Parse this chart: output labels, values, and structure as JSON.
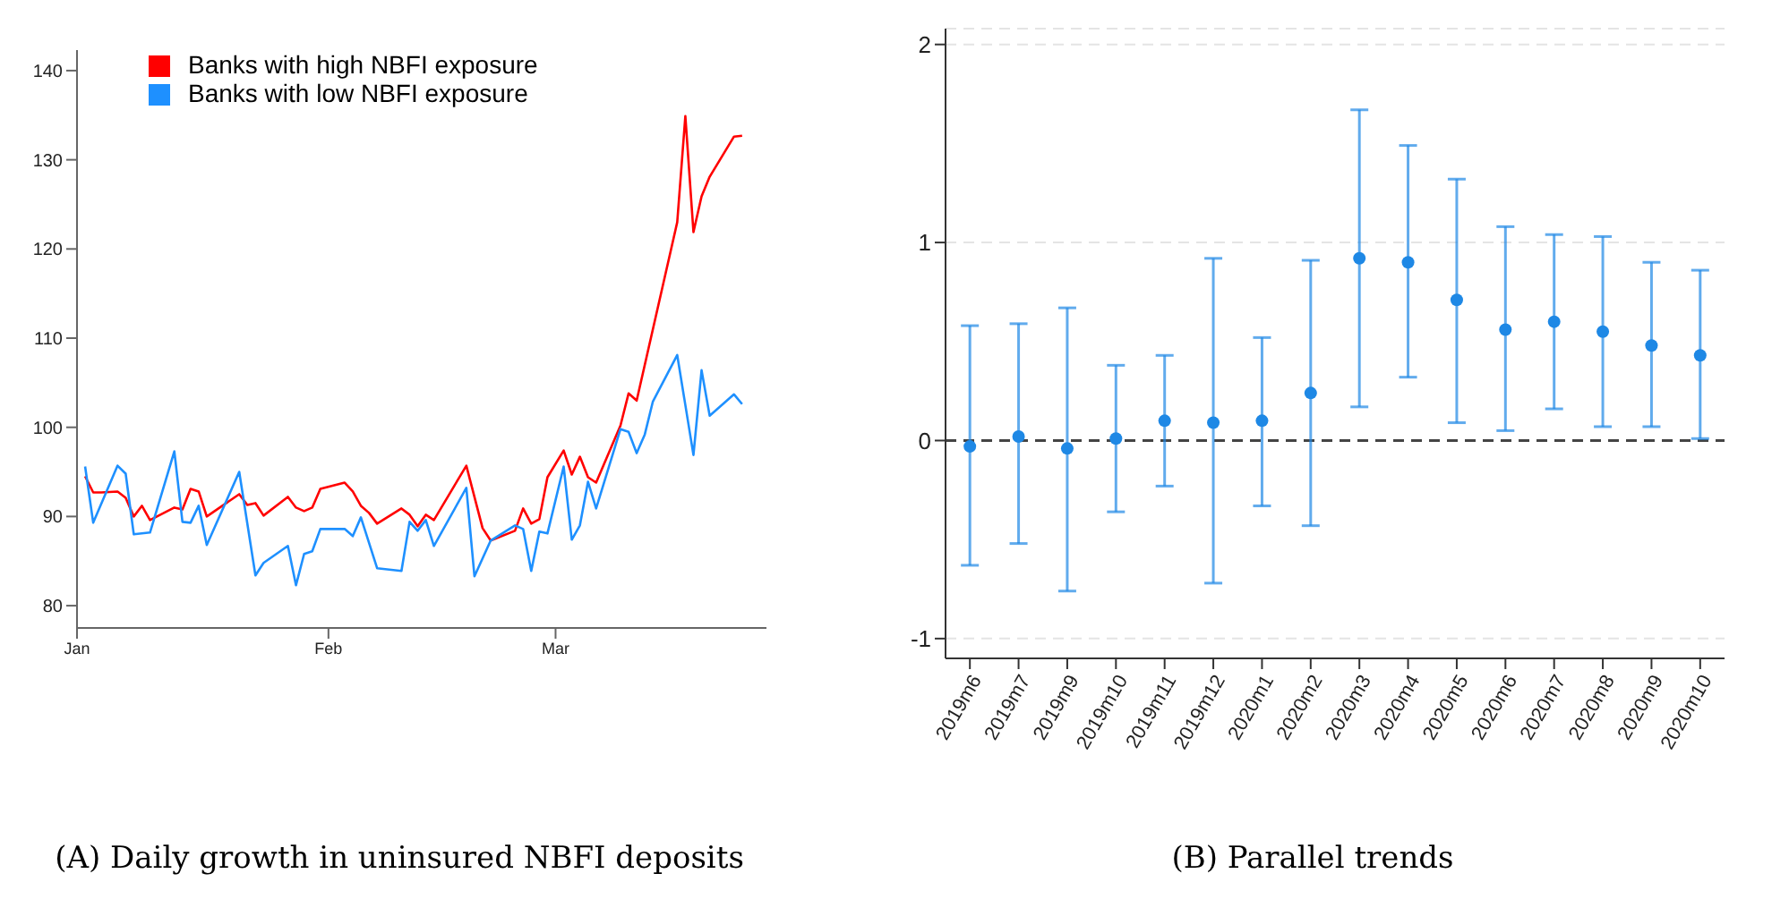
{
  "chart_data": [
    {
      "type": "line",
      "xlim": [
        "--01-01",
        "--03-27"
      ],
      "xticks": [
        {
          "value": "--01-01",
          "label": "Jan"
        },
        {
          "value": "--02-01",
          "label": "Feb"
        },
        {
          "value": "--03-01",
          "label": "Mar"
        }
      ],
      "ylim": [
        77.5,
        142.3
      ],
      "yticks": [
        80,
        90,
        100,
        110,
        120,
        130,
        140
      ],
      "legend": "top left",
      "grid": false,
      "annotations": [
        "(A) Daily growth in uninsured NBFI deposits"
      ],
      "series": [
        {
          "name": "Banks with high NBFI exposure",
          "color": "#ff0000",
          "x": [
            "--01-02",
            "--01-03",
            "--01-04",
            "--01-06",
            "--01-07",
            "--01-08",
            "--01-09",
            "--01-10",
            "--01-13",
            "--01-14",
            "--01-15",
            "--01-16",
            "--01-17",
            "--01-21",
            "--01-22",
            "--01-23",
            "--01-24",
            "--01-27",
            "--01-28",
            "--01-29",
            "--01-30",
            "--01-31",
            "--02-03",
            "--02-04",
            "--02-05",
            "--02-06",
            "--02-07",
            "--02-10",
            "--02-11",
            "--02-12",
            "--02-13",
            "--02-14",
            "--02-18",
            "--02-20",
            "--02-21",
            "--02-24",
            "--02-25",
            "--02-26",
            "--02-27",
            "--02-28",
            "--03-02",
            "--03-03",
            "--03-04",
            "--03-05",
            "--03-06",
            "--03-09",
            "--03-10",
            "--03-11",
            "--03-16",
            "--03-17",
            "--03-18",
            "--03-19",
            "--03-20",
            "--03-23",
            "--03-24"
          ],
          "values": [
            94.5,
            92.7,
            92.7,
            92.8,
            92.1,
            90.0,
            91.2,
            89.6,
            91.0,
            90.8,
            93.1,
            92.8,
            90.0,
            92.5,
            91.3,
            91.5,
            90.1,
            92.2,
            91.0,
            90.6,
            91.0,
            93.1,
            93.8,
            92.8,
            91.2,
            90.4,
            89.2,
            90.9,
            90.2,
            88.9,
            90.2,
            89.6,
            95.7,
            88.7,
            87.3,
            88.4,
            90.9,
            89.2,
            89.7,
            94.4,
            97.4,
            94.7,
            96.7,
            94.4,
            93.8,
            100.2,
            103.8,
            103.0,
            123.0,
            134.9,
            121.9,
            125.9,
            128.1,
            132.6,
            132.7
          ]
        },
        {
          "name": "Banks with low NBFI exposure",
          "color": "#1e90ff",
          "x": [
            "--01-02",
            "--01-03",
            "--01-06",
            "--01-07",
            "--01-08",
            "--01-10",
            "--01-13",
            "--01-14",
            "--01-15",
            "--01-16",
            "--01-17",
            "--01-21",
            "--01-23",
            "--01-24",
            "--01-27",
            "--01-28",
            "--01-29",
            "--01-30",
            "--01-31",
            "--02-03",
            "--02-04",
            "--02-05",
            "--02-07",
            "--02-10",
            "--02-11",
            "--02-12",
            "--02-13",
            "--02-14",
            "--02-18",
            "--02-19",
            "--02-21",
            "--02-24",
            "--02-25",
            "--02-26",
            "--02-27",
            "--02-28",
            "--03-02",
            "--03-03",
            "--03-04",
            "--03-05",
            "--03-06",
            "--03-09",
            "--03-10",
            "--03-11",
            "--03-12",
            "--03-13",
            "--03-16",
            "--03-18",
            "--03-19",
            "--03-20",
            "--03-23",
            "--03-24"
          ],
          "values": [
            95.6,
            89.3,
            95.7,
            94.8,
            88.0,
            88.2,
            97.3,
            89.4,
            89.3,
            91.2,
            86.8,
            95.0,
            83.4,
            84.8,
            86.7,
            82.3,
            85.8,
            86.1,
            88.6,
            88.6,
            87.8,
            89.9,
            84.2,
            83.9,
            89.4,
            88.4,
            89.6,
            86.7,
            93.2,
            83.3,
            87.3,
            89.0,
            88.6,
            83.9,
            88.3,
            88.1,
            95.6,
            87.4,
            89.0,
            93.9,
            90.9,
            99.8,
            99.5,
            97.1,
            99.2,
            102.9,
            108.1,
            96.9,
            106.4,
            101.3,
            103.7,
            102.6
          ]
        }
      ]
    },
    {
      "type": "scatter",
      "categories": [
        "2019m6",
        "2019m7",
        "2019m9",
        "2019m10",
        "2019m11",
        "2019m12",
        "2020m1",
        "2020m2",
        "2020m3",
        "2020m4",
        "2020m5",
        "2020m6",
        "2020m7",
        "2020m8",
        "2020m9",
        "2020m10"
      ],
      "ylim": [
        -1.1,
        2.08
      ],
      "yticks": [
        -1,
        0,
        1,
        2
      ],
      "grid": "y",
      "marker": "circle",
      "annotations": [
        "(B) Parallel trends"
      ],
      "ref_lines": [
        {
          "axis": "y",
          "value": 0,
          "color": "#444444",
          "line_style": "dashed"
        }
      ],
      "series": [
        {
          "color": "#1e88e5",
          "values": [
            -0.03,
            0.02,
            -0.04,
            0.01,
            0.1,
            0.09,
            0.1,
            0.24,
            0.92,
            0.9,
            0.71,
            0.56,
            0.6,
            0.55,
            0.48,
            0.43
          ],
          "errors": [
            [
              -0.63,
              0.58
            ],
            [
              -0.52,
              0.59
            ],
            [
              -0.76,
              0.67
            ],
            [
              -0.36,
              0.38
            ],
            [
              -0.23,
              0.43
            ],
            [
              -0.72,
              0.92
            ],
            [
              -0.33,
              0.52
            ],
            [
              -0.43,
              0.91
            ],
            [
              0.17,
              1.67
            ],
            [
              0.32,
              1.49
            ],
            [
              0.09,
              1.32
            ],
            [
              0.05,
              1.08
            ],
            [
              0.16,
              1.04
            ],
            [
              0.07,
              1.03
            ],
            [
              0.07,
              0.9
            ],
            [
              0.01,
              0.86
            ]
          ]
        }
      ]
    }
  ]
}
